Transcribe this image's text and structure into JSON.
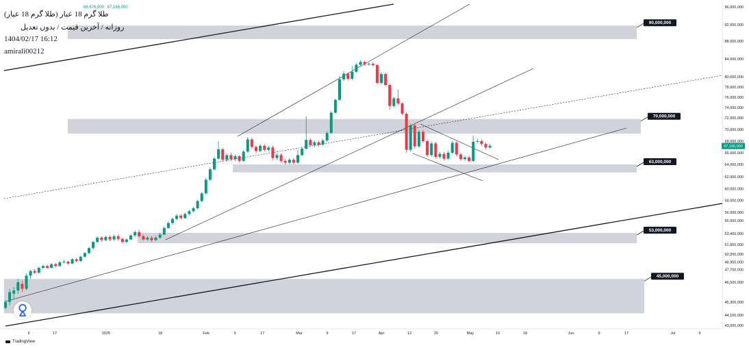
{
  "header": {
    "symbol_title": "طلا گرم 18 عیار (طلا گرم 18 عیار)",
    "chart_info": "روزانه / آخرین قیمت / بدون تعدیل",
    "datetime": "1404/02/17 16:12",
    "author": "amirali00212",
    "ohlc_a": "66,676,000",
    "ohlc_b": "67,166,000"
  },
  "branding": {
    "name": "TradingView"
  },
  "colors": {
    "up": "#089981",
    "down": "#f23645",
    "zone": "#b2b5be",
    "tag_bg": "#131722",
    "price_tag": "#089981"
  },
  "chart_data": {
    "type": "candlestick",
    "y_axis_ticks": [
      "96,000,000",
      "92,000,000",
      "88,000,000",
      "84,000,000",
      "80,000,000",
      "78,000,000",
      "76,000,000",
      "74,000,000",
      "72,000,000",
      "70,000,000",
      "68,000,000",
      "66,000,000",
      "64,000,000",
      "62,000,000",
      "60,000,000",
      "58,000,000",
      "56,000,000",
      "55,000,000",
      "53,400,000",
      "51,800,000",
      "50,200,000",
      "48,950,000",
      "47,700,000",
      "46,500,000",
      "45,300,000",
      "44,100,000",
      "43,000,000"
    ],
    "x_axis_ticks": [
      "9",
      "17",
      "2025",
      "18",
      "Feb",
      "9",
      "17",
      "Mar",
      "9",
      "17",
      "Apr",
      "12",
      "20",
      "May",
      "10",
      "18",
      "Jun",
      "9",
      "17",
      "Jul",
      "9"
    ],
    "last_price_label": "67,166,000",
    "zones": [
      {
        "label": "90,000,000",
        "low": 88500000,
        "high": 91800000
      },
      {
        "label": "70,000,000",
        "low": 69300000,
        "high": 71800000
      },
      {
        "label": "63,000,000",
        "low": 62700000,
        "high": 64000000
      },
      {
        "label": "53,000,000",
        "low": 52000000,
        "high": 53500000
      },
      {
        "label": "45,000,000",
        "low": 44300000,
        "high": 46700000
      }
    ],
    "candles": [
      [
        0,
        44.9,
        45.3,
        44.7,
        45.4
      ],
      [
        1,
        45.3,
        45.9,
        45.1,
        46.1
      ],
      [
        2,
        45.8,
        46.0,
        45.5,
        46.2
      ],
      [
        3,
        46.0,
        46.5,
        45.8,
        46.7
      ],
      [
        4,
        46.4,
        46.1,
        45.9,
        46.6
      ],
      [
        5,
        46.1,
        46.9,
        46.0,
        47.1
      ],
      [
        6,
        46.9,
        47.5,
        46.7,
        47.7
      ],
      [
        7,
        47.5,
        47.2,
        47.0,
        47.8
      ],
      [
        8,
        47.2,
        48.0,
        47.1,
        48.2
      ],
      [
        9,
        48.0,
        48.3,
        47.8,
        48.5
      ],
      [
        10,
        48.3,
        48.0,
        47.8,
        48.5
      ],
      [
        11,
        48.0,
        48.6,
        47.9,
        48.8
      ],
      [
        12,
        48.6,
        48.3,
        48.1,
        48.8
      ],
      [
        13,
        48.3,
        48.9,
        48.2,
        49.1
      ],
      [
        14,
        48.9,
        49.0,
        48.7,
        49.3
      ],
      [
        15,
        49.0,
        48.7,
        48.5,
        49.2
      ],
      [
        16,
        48.7,
        49.4,
        48.6,
        49.6
      ],
      [
        17,
        49.4,
        49.1,
        48.9,
        49.6
      ],
      [
        18,
        49.1,
        49.8,
        49.0,
        50.0
      ],
      [
        19,
        49.8,
        50.4,
        49.7,
        50.6
      ],
      [
        20,
        50.4,
        51.2,
        50.2,
        51.4
      ],
      [
        21,
        51.2,
        52.2,
        51.0,
        52.4
      ],
      [
        22,
        52.2,
        52.9,
        52.0,
        53.1
      ],
      [
        23,
        52.9,
        52.5,
        52.2,
        53.1
      ],
      [
        24,
        52.5,
        53.0,
        52.3,
        53.2
      ],
      [
        25,
        53.0,
        52.6,
        52.3,
        53.2
      ],
      [
        26,
        52.6,
        53.1,
        52.4,
        53.3
      ],
      [
        27,
        53.1,
        52.7,
        52.4,
        53.3
      ],
      [
        28,
        52.7,
        52.2,
        52.0,
        52.9
      ],
      [
        29,
        52.2,
        52.6,
        52.0,
        52.8
      ],
      [
        30,
        52.6,
        53.2,
        52.5,
        53.4
      ],
      [
        31,
        53.2,
        53.6,
        53.0,
        53.8
      ],
      [
        32,
        53.6,
        53.1,
        52.9,
        53.9
      ],
      [
        33,
        53.1,
        52.6,
        52.4,
        53.3
      ],
      [
        34,
        52.6,
        52.9,
        52.4,
        53.1
      ],
      [
        35,
        52.9,
        52.5,
        52.2,
        53.1
      ],
      [
        36,
        52.5,
        52.9,
        52.3,
        53.1
      ],
      [
        37,
        52.9,
        53.3,
        52.7,
        53.5
      ],
      [
        38,
        53.3,
        54.1,
        53.2,
        54.3
      ],
      [
        39,
        54.1,
        54.7,
        54.0,
        54.9
      ],
      [
        40,
        54.7,
        55.2,
        54.5,
        55.4
      ],
      [
        41,
        55.2,
        55.6,
        55.0,
        55.8
      ],
      [
        42,
        55.6,
        55.3,
        55.1,
        55.8
      ],
      [
        43,
        55.3,
        55.8,
        55.2,
        56.0
      ],
      [
        44,
        55.8,
        56.2,
        55.6,
        56.4
      ],
      [
        45,
        56.2,
        56.7,
        56.0,
        56.9
      ],
      [
        46,
        56.7,
        57.9,
        56.5,
        58.1
      ],
      [
        47,
        57.9,
        59.2,
        57.7,
        59.4
      ],
      [
        48,
        59.2,
        61.5,
        59.0,
        61.8
      ],
      [
        49,
        61.5,
        63.2,
        61.2,
        63.5
      ],
      [
        50,
        63.2,
        65.0,
        63.0,
        65.3
      ],
      [
        51,
        65.0,
        66.6,
        64.8,
        68.0
      ],
      [
        52,
        66.6,
        64.8,
        64.5,
        66.9
      ],
      [
        53,
        64.8,
        65.6,
        64.5,
        65.9
      ],
      [
        54,
        65.6,
        64.9,
        64.6,
        66.0
      ],
      [
        55,
        64.9,
        65.4,
        64.6,
        65.7
      ],
      [
        56,
        65.4,
        64.6,
        64.3,
        65.6
      ],
      [
        57,
        64.6,
        66.2,
        64.4,
        66.5
      ],
      [
        58,
        66.2,
        68.3,
        66.0,
        68.7
      ],
      [
        59,
        68.3,
        67.0,
        66.7,
        68.6
      ],
      [
        60,
        67.0,
        66.3,
        66.0,
        67.3
      ],
      [
        61,
        66.3,
        67.2,
        66.1,
        67.5
      ],
      [
        62,
        67.2,
        66.5,
        66.2,
        67.5
      ],
      [
        63,
        66.5,
        66.9,
        66.2,
        67.2
      ],
      [
        64,
        66.9,
        65.1,
        64.8,
        67.2
      ],
      [
        65,
        65.1,
        65.6,
        64.8,
        65.9
      ],
      [
        66,
        65.6,
        64.6,
        64.3,
        65.9
      ],
      [
        67,
        64.6,
        64.3,
        64.0,
        64.9
      ],
      [
        68,
        64.3,
        64.8,
        64.0,
        65.1
      ],
      [
        69,
        64.8,
        64.3,
        64.0,
        65.1
      ],
      [
        70,
        64.3,
        65.6,
        64.1,
        66.5
      ],
      [
        71,
        65.6,
        66.7,
        65.4,
        67.0
      ],
      [
        72,
        66.7,
        68.2,
        66.5,
        72.3
      ],
      [
        73,
        68.2,
        67.3,
        67.0,
        68.5
      ],
      [
        74,
        67.3,
        67.8,
        67.0,
        68.1
      ],
      [
        75,
        67.8,
        67.4,
        67.1,
        68.1
      ],
      [
        76,
        67.4,
        68.1,
        67.2,
        68.4
      ],
      [
        77,
        68.1,
        69.4,
        67.9,
        69.7
      ],
      [
        78,
        69.4,
        73.0,
        69.2,
        73.3
      ],
      [
        79,
        73.0,
        75.5,
        72.8,
        75.8
      ],
      [
        80,
        75.5,
        79.5,
        75.3,
        80.2
      ],
      [
        81,
        79.5,
        80.7,
        79.2,
        81.3
      ],
      [
        82,
        80.7,
        79.6,
        79.3,
        81.0
      ],
      [
        83,
        79.6,
        81.1,
        79.3,
        82.4
      ],
      [
        84,
        81.1,
        82.7,
        80.9,
        83.0
      ],
      [
        85,
        82.7,
        83.3,
        82.4,
        83.7
      ],
      [
        86,
        83.3,
        82.8,
        82.5,
        83.6
      ],
      [
        87,
        82.8,
        82.9,
        82.5,
        83.2
      ],
      [
        88,
        82.9,
        82.6,
        82.3,
        83.2
      ],
      [
        89,
        82.6,
        78.8,
        78.5,
        82.9
      ],
      [
        90,
        78.8,
        80.6,
        78.5,
        80.9
      ],
      [
        91,
        80.6,
        78.4,
        78.1,
        80.9
      ],
      [
        92,
        78.4,
        74.3,
        73.6,
        78.7
      ],
      [
        93,
        74.3,
        75.8,
        74.0,
        76.1
      ],
      [
        94,
        75.8,
        74.8,
        74.5,
        77.5
      ],
      [
        95,
        74.8,
        72.8,
        72.5,
        75.1
      ],
      [
        96,
        72.8,
        66.5,
        66.0,
        73.1
      ],
      [
        97,
        66.5,
        70.7,
        66.2,
        71.0
      ],
      [
        98,
        70.7,
        67.1,
        66.7,
        71.0
      ],
      [
        99,
        67.1,
        69.6,
        66.8,
        69.9
      ],
      [
        100,
        69.6,
        68.0,
        67.7,
        69.9
      ],
      [
        101,
        68.0,
        65.6,
        65.3,
        68.3
      ],
      [
        102,
        65.6,
        67.6,
        65.3,
        67.9
      ],
      [
        103,
        67.6,
        65.3,
        65.0,
        67.9
      ],
      [
        104,
        65.3,
        65.8,
        65.0,
        66.1
      ],
      [
        105,
        65.8,
        65.0,
        64.7,
        66.1
      ],
      [
        106,
        65.0,
        66.0,
        64.8,
        66.3
      ],
      [
        107,
        66.0,
        67.7,
        65.8,
        68.0
      ],
      [
        108,
        67.7,
        65.7,
        65.4,
        68.0
      ],
      [
        109,
        65.7,
        64.9,
        64.6,
        66.0
      ],
      [
        110,
        64.9,
        65.2,
        64.6,
        65.5
      ],
      [
        111,
        65.2,
        64.6,
        64.3,
        65.5
      ],
      [
        112,
        64.6,
        67.9,
        64.4,
        68.9
      ],
      [
        113,
        67.9,
        68.0,
        67.6,
        68.4
      ],
      [
        114,
        68.0,
        67.5,
        67.2,
        68.3
      ],
      [
        115,
        67.5,
        66.9,
        66.6,
        67.8
      ],
      [
        116,
        66.9,
        67.2,
        66.7,
        67.5
      ]
    ]
  }
}
